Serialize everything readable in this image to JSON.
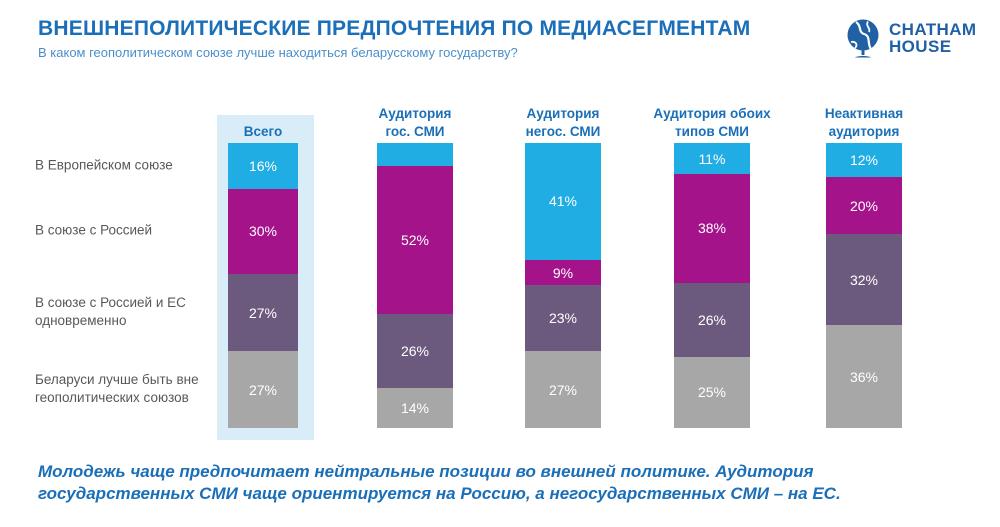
{
  "header": {
    "title": "ВНЕШНЕПОЛИТИЧЕСКИЕ ПРЕДПОЧТЕНИЯ ПО МЕДИАСЕГМЕНТАМ",
    "subtitle": "В каком геополитическом союзе лучше находиться беларусскому государству?",
    "logo_line1": "CHATHAM",
    "logo_line2": "HOUSE"
  },
  "colors": {
    "title_blue": "#1a6fb8",
    "subtitle_blue": "#4a8fcb",
    "logo_blue": "#2160a5",
    "eu_cyan": "#20ade4",
    "russia_magenta": "#a5138b",
    "both_purple": "#6c5a7e",
    "neither_gray": "#a7a7a7",
    "highlight_panel": "#d9edf9",
    "row_label_gray": "#57585a"
  },
  "row_labels": [
    "В Европейском союзе",
    "В союзе с Россией",
    "В союзе с Россией и ЕС одновременно",
    "Беларуси лучше быть вне геополитических союзов"
  ],
  "chart_data": {
    "type": "bar",
    "stacked": true,
    "orientation": "vertical",
    "unit": "%",
    "ylim": [
      0,
      100
    ],
    "grid": false,
    "legend_position": "left-row-labels",
    "highlight_column": 0,
    "categories": [
      "Всего",
      "Аудитория\nгос. СМИ",
      "Аудитория\nнегос. СМИ",
      "Аудитория обоих\nтипов СМИ",
      "Неактивная\nаудитория"
    ],
    "series": [
      {
        "name": "В Европейском союзе",
        "color": "#20ade4",
        "values": [
          16,
          8,
          41,
          11,
          12
        ],
        "labels": [
          "16%",
          "",
          "41%",
          "11%",
          "12%"
        ]
      },
      {
        "name": "В союзе с Россией",
        "color": "#a5138b",
        "values": [
          30,
          52,
          9,
          38,
          20
        ],
        "labels": [
          "30%",
          "52%",
          "9%",
          "38%",
          "20%"
        ]
      },
      {
        "name": "В союзе с Россией и ЕС одновременно",
        "color": "#6c5a7e",
        "values": [
          27,
          26,
          23,
          26,
          32
        ],
        "labels": [
          "27%",
          "26%",
          "23%",
          "26%",
          "32%"
        ]
      },
      {
        "name": "Беларуси лучше быть вне геополитических союзов",
        "color": "#a7a7a7",
        "values": [
          27,
          14,
          27,
          25,
          36
        ],
        "labels": [
          "27%",
          "14%",
          "27%",
          "25%",
          "36%"
        ]
      }
    ]
  },
  "footnote": "Молодежь чаще предпочитает нейтральные позиции во внешней политике. Аудитория государственных СМИ чаще ориентируется на Россию, а негосударственных СМИ – на ЕС."
}
